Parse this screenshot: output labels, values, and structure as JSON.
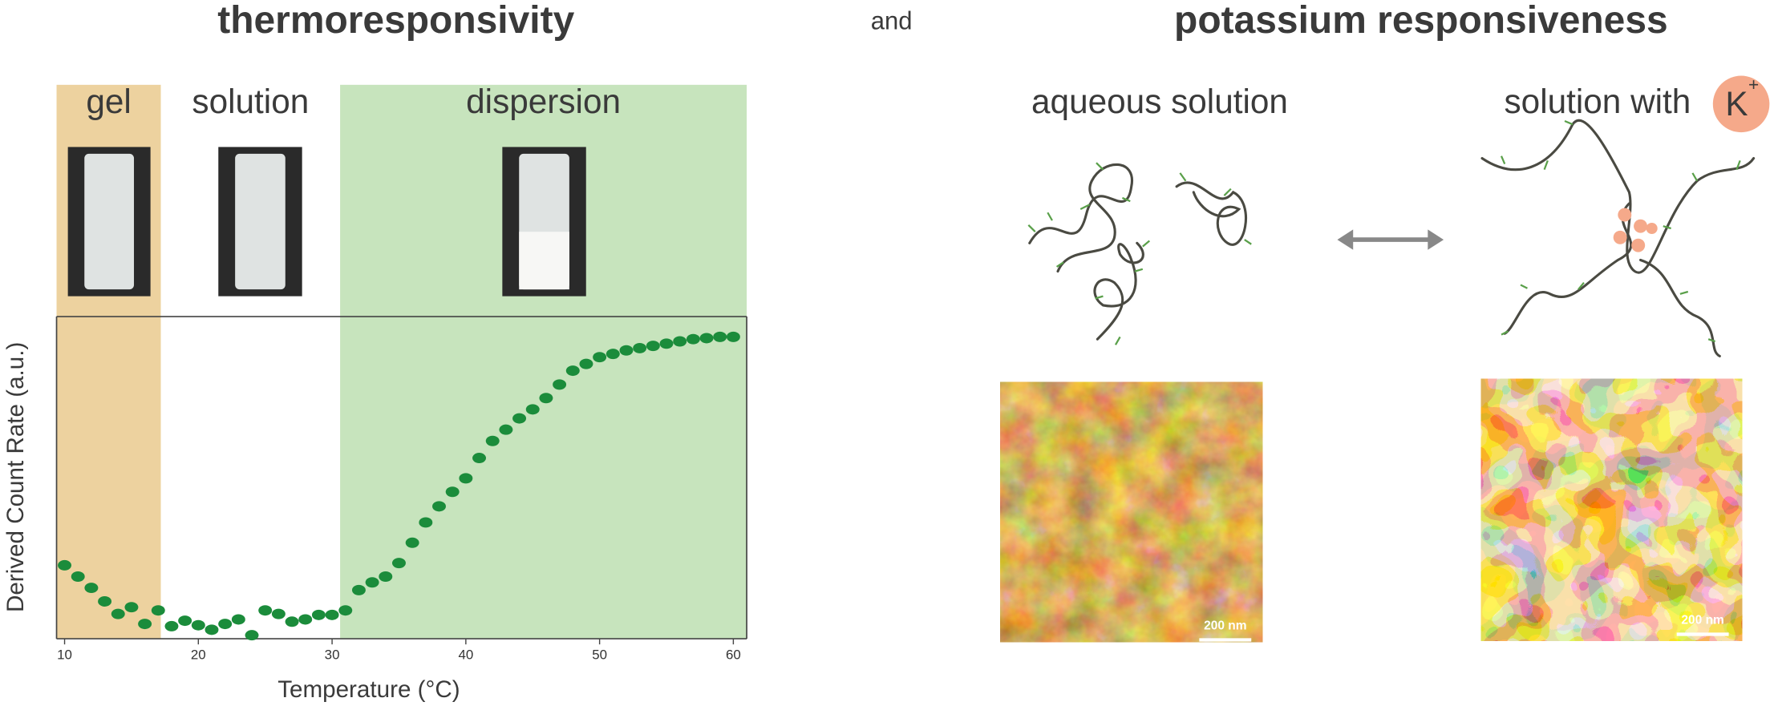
{
  "header": {
    "title_left": "thermoresponsivity",
    "connector": "and",
    "title_right": "potassium responsiveness"
  },
  "chart_data": {
    "type": "scatter",
    "xlabel": "Temperature (°C)",
    "ylabel": "Derived Count Rate (a.u.)",
    "x": [
      10,
      11,
      12,
      13,
      14,
      15,
      16,
      17,
      18,
      19,
      20,
      21,
      22,
      23,
      24,
      25,
      26,
      27,
      28,
      29,
      30,
      31,
      32,
      33,
      34,
      35,
      36,
      37,
      38,
      39,
      40,
      41,
      42,
      43,
      44,
      45,
      46,
      47,
      48,
      49,
      50,
      51,
      52,
      53,
      54,
      55,
      56,
      57,
      58,
      59,
      60
    ],
    "values": [
      22.8,
      19.3,
      15.8,
      11.6,
      7.7,
      9.8,
      4.6,
      8.8,
      3.9,
      5.6,
      4.2,
      2.8,
      4.6,
      6.0,
      1.1,
      8.8,
      7.7,
      5.3,
      6.0,
      7.4,
      7.4,
      8.8,
      15.1,
      17.5,
      19.3,
      23.5,
      29.8,
      36.1,
      41.1,
      45.6,
      49.8,
      56.1,
      61.4,
      64.9,
      68.4,
      71.2,
      74.7,
      78.9,
      83.2,
      85.3,
      87.4,
      88.4,
      89.5,
      90.2,
      90.9,
      91.6,
      92.3,
      93.0,
      93.3,
      93.7,
      93.7
    ],
    "color": "#1b8c3b",
    "xlim": [
      9.4,
      61
    ],
    "ylim": [
      0,
      100
    ],
    "xticks": [
      10,
      20,
      30,
      40,
      50,
      60
    ],
    "regions": [
      {
        "label": "gel",
        "start": 9.4,
        "end": 17.2,
        "color": "#edd29f"
      },
      {
        "label": "solution",
        "start": 17.2,
        "end": 30.6,
        "color": "#ffffff"
      },
      {
        "label": "dispersion",
        "start": 30.6,
        "end": 61,
        "color": "#c7e4bd"
      }
    ]
  },
  "right": {
    "left_label": "aqueous solution",
    "right_label": "solution with",
    "ion": "K",
    "ion_charge": "+",
    "scale_bars": [
      "200 nm",
      "200 nm"
    ]
  }
}
